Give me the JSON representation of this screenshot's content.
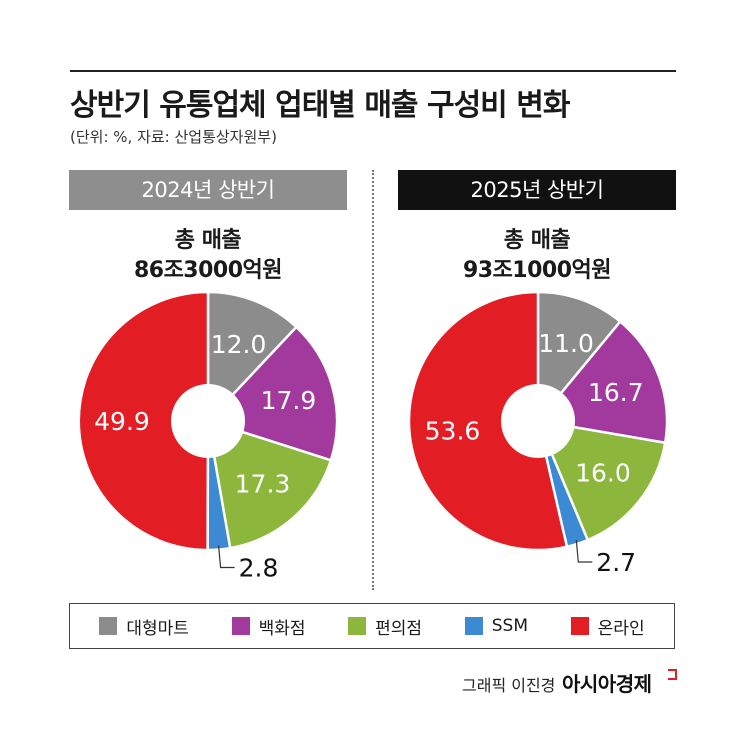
{
  "title": "상반기 유통업체 업태별 매출 구성비 변화",
  "subtitle": "(단위: %, 자료: 산업통상자원부)",
  "legend": [
    {
      "label": "대형마트",
      "color": "#8c8c8c"
    },
    {
      "label": "백화점",
      "color": "#a23a9e"
    },
    {
      "label": "편의점",
      "color": "#8cb63c"
    },
    {
      "label": "SSM",
      "color": "#3b8ad3"
    },
    {
      "label": "온라인",
      "color": "#e21d24"
    }
  ],
  "credit": {
    "text": "그래픽 이진경",
    "brand": "아시아경제"
  },
  "chart_data": [
    {
      "type": "pie",
      "title": "2024년 상반기",
      "total_label": "총 매출",
      "total_value": "86조3000억원",
      "categories": [
        "대형마트",
        "백화점",
        "편의점",
        "SSM",
        "온라인"
      ],
      "values": [
        12.0,
        17.9,
        17.3,
        2.8,
        49.9
      ],
      "value_labels": [
        "12.0",
        "17.9",
        "17.3",
        "2.8",
        "49.9"
      ]
    },
    {
      "type": "pie",
      "title": "2025년 상반기",
      "total_label": "총 매출",
      "total_value": "93조1000억원",
      "categories": [
        "대형마트",
        "백화점",
        "편의점",
        "SSM",
        "온라인"
      ],
      "values": [
        11.0,
        16.7,
        16.0,
        2.7,
        53.6
      ],
      "value_labels": [
        "11.0",
        "16.7",
        "16.0",
        "2.7",
        "53.6"
      ]
    }
  ]
}
